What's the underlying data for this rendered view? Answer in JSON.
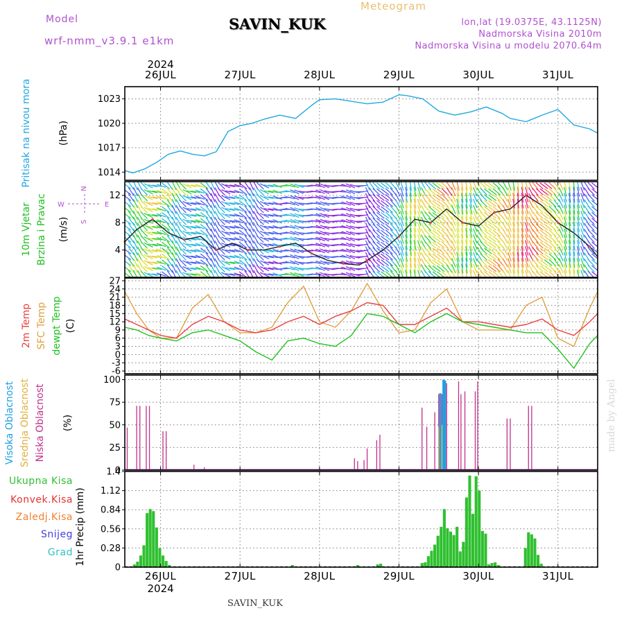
{
  "header": {
    "model_label": "Model",
    "model_name": "wrf-nmm_v3.9.1  e1km",
    "station": "SAVIN_KUK",
    "meteogram": "Meteogram",
    "lonlat": "lon,lat (19.0375E, 43.1125N)",
    "elevation": "Nadmorska Visina 2010m",
    "model_elevation": "Nadmorska Visina u modelu 2070.64m",
    "footer_station": "SAVIN_KUK",
    "credit": "made by Angel"
  },
  "colors": {
    "pressure": "#1fa8e0",
    "temp2m": "#e84040",
    "sfc": "#e0a040",
    "dewpt": "#20c020",
    "purple": "#b050d0",
    "precip": "#30c030",
    "konvek": "#e83030",
    "zaledj": "#f08030",
    "snijeg": "#4040e0",
    "grad": "#30c0c0",
    "low_cloud": "#c0308a",
    "mid_cloud": "#e0b040",
    "high_cloud": "#1fa0e0"
  },
  "chart_data": [
    {
      "type": "line",
      "panel": "pressure",
      "ylabel_lines": [
        "Pritisak na nivou mora"
      ],
      "unit": "(hPa)",
      "yticks": [
        1014,
        1017,
        1020,
        1023
      ],
      "ylim": [
        1013,
        1024.5
      ],
      "xlim": [
        -0.45,
        5.5
      ],
      "series": [
        {
          "name": "Pritisak na nivou mora",
          "x": [
            -0.45,
            -0.35,
            -0.2,
            -0.05,
            0.1,
            0.25,
            0.4,
            0.55,
            0.7,
            0.85,
            1.0,
            1.15,
            1.3,
            1.5,
            1.7,
            1.9,
            2.0,
            2.2,
            2.4,
            2.6,
            2.8,
            3.0,
            3.1,
            3.3,
            3.5,
            3.7,
            3.9,
            4.1,
            4.3,
            4.4,
            4.6,
            4.8,
            5.0,
            5.2,
            5.4,
            5.5
          ],
          "y": [
            1014.2,
            1013.9,
            1014.4,
            1015.2,
            1016.2,
            1016.6,
            1016.2,
            1016.0,
            1016.5,
            1019.0,
            1019.7,
            1020.0,
            1020.5,
            1021.0,
            1020.6,
            1022.2,
            1022.9,
            1023.0,
            1022.7,
            1022.4,
            1022.6,
            1023.5,
            1023.4,
            1023.0,
            1021.5,
            1021.0,
            1021.4,
            1022.0,
            1021.2,
            1020.6,
            1020.2,
            1021.0,
            1021.7,
            1019.8,
            1019.3,
            1018.8
          ]
        }
      ]
    },
    {
      "type": "line",
      "panel": "wind",
      "ylabel_lines": [
        "10m Vjetar",
        "Brzina i Pravac"
      ],
      "unit": "(m/s)",
      "compass_labels": [
        "N",
        "W",
        "E",
        "S"
      ],
      "yticks": [
        4,
        8,
        12
      ],
      "ylim": [
        0,
        14
      ],
      "xlim": [
        -0.45,
        5.5
      ],
      "series": [
        {
          "name": "Brzina",
          "x": [
            -0.45,
            -0.3,
            -0.1,
            0.1,
            0.3,
            0.5,
            0.7,
            0.9,
            1.1,
            1.3,
            1.5,
            1.7,
            1.9,
            2.1,
            2.3,
            2.5,
            2.6,
            2.8,
            3.0,
            3.2,
            3.4,
            3.6,
            3.8,
            4.0,
            4.2,
            4.4,
            4.6,
            4.8,
            5.0,
            5.2,
            5.4,
            5.5
          ],
          "y": [
            5.2,
            7.0,
            8.5,
            6.5,
            5.5,
            6.0,
            4.0,
            5.0,
            4.0,
            4.0,
            4.5,
            5.0,
            3.5,
            2.5,
            2.0,
            1.8,
            2.5,
            4.0,
            6.0,
            8.5,
            8.0,
            10.0,
            8.0,
            7.5,
            9.5,
            10.0,
            12.0,
            10.5,
            8.0,
            6.5,
            4.5,
            3.0
          ]
        }
      ]
    },
    {
      "type": "line",
      "panel": "temperature",
      "ylabel_lines": [
        "2m Temp",
        "SFC Temp",
        "dewpt Temp"
      ],
      "unit": "(C)",
      "yticks": [
        -6,
        -3,
        0,
        3,
        6,
        9,
        12,
        15,
        18,
        21,
        24,
        27
      ],
      "ylim": [
        -7,
        28
      ],
      "xlim": [
        -0.45,
        5.5
      ],
      "series": [
        {
          "name": "2m Temp",
          "x": [
            -0.45,
            -0.3,
            -0.15,
            0.0,
            0.2,
            0.4,
            0.6,
            0.8,
            1.0,
            1.2,
            1.4,
            1.6,
            1.8,
            2.0,
            2.2,
            2.4,
            2.6,
            2.8,
            3.0,
            3.2,
            3.4,
            3.6,
            3.8,
            4.0,
            4.2,
            4.4,
            4.6,
            4.8,
            5.0,
            5.2,
            5.4,
            5.5
          ],
          "y": [
            13,
            11,
            9,
            7,
            6,
            11,
            14,
            12,
            9,
            8,
            9,
            12,
            14,
            11,
            14,
            16,
            19,
            18,
            11,
            11,
            14,
            17,
            12,
            12,
            11,
            10,
            11,
            13,
            9,
            7,
            12,
            15
          ]
        },
        {
          "name": "SFC Temp",
          "x": [
            -0.45,
            -0.3,
            -0.15,
            0.0,
            0.2,
            0.4,
            0.6,
            0.8,
            1.0,
            1.2,
            1.4,
            1.6,
            1.8,
            2.0,
            2.2,
            2.4,
            2.6,
            2.8,
            3.0,
            3.2,
            3.4,
            3.6,
            3.8,
            4.0,
            4.2,
            4.4,
            4.6,
            4.8,
            5.0,
            5.2,
            5.4,
            5.5
          ],
          "y": [
            23,
            15,
            9,
            6,
            6,
            17,
            22,
            12,
            8,
            8,
            10,
            19,
            25,
            12,
            10,
            16,
            26,
            16,
            8,
            9,
            19,
            24,
            12,
            9,
            9,
            9,
            18,
            21,
            6,
            3,
            17,
            23
          ]
        },
        {
          "name": "dewpt Temp",
          "x": [
            -0.45,
            -0.3,
            -0.15,
            0.0,
            0.2,
            0.4,
            0.6,
            0.8,
            1.0,
            1.2,
            1.4,
            1.6,
            1.8,
            2.0,
            2.2,
            2.4,
            2.6,
            2.8,
            3.0,
            3.2,
            3.4,
            3.6,
            3.8,
            4.0,
            4.2,
            4.4,
            4.6,
            4.8,
            5.0,
            5.2,
            5.4,
            5.5
          ],
          "y": [
            10,
            9,
            7,
            6,
            5,
            8,
            9,
            7,
            5,
            1,
            -2,
            5,
            6,
            4,
            3,
            7,
            15,
            14,
            11,
            8,
            12,
            15,
            12,
            11,
            10,
            9,
            8,
            8,
            2,
            -5,
            4,
            7
          ]
        }
      ]
    },
    {
      "type": "bar",
      "panel": "cloud",
      "ylabel_lines": [
        "Visoka Oblacnost",
        "Srednja Oblacnost",
        "Niska Oblacnost"
      ],
      "unit": "(%)",
      "yticks": [
        0,
        25,
        50,
        75,
        100
      ],
      "ylim": [
        0,
        105
      ],
      "xlim": [
        -0.45,
        5.5
      ],
      "series": [
        {
          "name": "Niska Oblacnost",
          "x": [
            -0.42,
            -0.3,
            -0.26,
            -0.18,
            -0.14,
            0.03,
            0.07,
            0.42,
            0.55,
            2.44,
            2.48,
            2.56,
            2.6,
            2.72,
            2.76,
            3.29,
            3.35,
            3.45,
            3.5,
            3.54,
            3.6,
            3.75,
            3.78,
            3.83,
            3.96,
            3.99,
            4.36,
            4.4,
            4.63,
            4.67
          ],
          "values": [
            47,
            71,
            71,
            71,
            71,
            43,
            43,
            6,
            3,
            13,
            10,
            11,
            24,
            33,
            39,
            69,
            48,
            64,
            84,
            84,
            96,
            98,
            84,
            87,
            87,
            98,
            57,
            57,
            71,
            71
          ]
        },
        {
          "name": "Srednja Oblacnost",
          "x": [
            3.5,
            3.54
          ],
          "values": [
            48,
            50
          ]
        },
        {
          "name": "Visoka Oblacnost",
          "x": [
            3.52,
            3.56,
            3.58
          ],
          "values": [
            85,
            100,
            99
          ]
        }
      ]
    },
    {
      "type": "bar",
      "panel": "precip",
      "ylabel_lines": [
        "1hr Precip (mm)"
      ],
      "legend": [
        "Ukupna  Kisa",
        "Konvek.Kisa",
        "Zaledj.Kisa",
        "Snijeg",
        "Grad"
      ],
      "yticks": [
        0,
        0.28,
        0.56,
        0.84,
        1.12,
        1.4
      ],
      "ytick_labels": [
        "0",
        "0.28",
        "0.56",
        "0.84",
        "1.12",
        "1.4"
      ],
      "ylim": [
        0,
        1.4
      ],
      "xlim": [
        -0.45,
        5.5
      ],
      "series": [
        {
          "name": "Ukupna  Kisa",
          "x": [
            -0.33,
            -0.29,
            -0.25,
            -0.21,
            -0.17,
            -0.13,
            -0.09,
            -0.05,
            -0.01,
            0.03,
            0.07,
            0.11,
            1.66,
            2.48,
            2.73,
            2.77,
            3.29,
            3.33,
            3.37,
            3.41,
            3.45,
            3.49,
            3.53,
            3.57,
            3.61,
            3.65,
            3.69,
            3.73,
            3.77,
            3.81,
            3.85,
            3.89,
            3.93,
            3.97,
            4.01,
            4.05,
            4.09,
            4.13,
            4.17,
            4.21,
            4.25,
            4.59,
            4.63,
            4.67,
            4.71,
            4.75,
            4.79
          ],
          "values": [
            0.04,
            0.08,
            0.17,
            0.32,
            0.79,
            0.85,
            0.82,
            0.58,
            0.28,
            0.17,
            0.09,
            0.03,
            0.03,
            0.03,
            0.04,
            0.05,
            0.06,
            0.07,
            0.16,
            0.24,
            0.33,
            0.46,
            0.59,
            0.85,
            0.57,
            0.52,
            0.47,
            0.59,
            0.23,
            0.37,
            1.02,
            1.34,
            0.78,
            1.33,
            1.12,
            0.53,
            0.49,
            0.04,
            0.06,
            0.07,
            0.03,
            0.28,
            0.51,
            0.48,
            0.42,
            0.18,
            0.05
          ]
        },
        {
          "name": "Konvek.Kisa",
          "x": [],
          "values": []
        },
        {
          "name": "Zaledj.Kisa",
          "x": [],
          "values": []
        },
        {
          "name": "Snijeg",
          "x": [],
          "values": []
        },
        {
          "name": "Grad",
          "x": [],
          "values": []
        }
      ]
    }
  ],
  "xaxis": {
    "days": [
      "26JUL",
      "27JUL",
      "28JUL",
      "29JUL",
      "30JUL",
      "31JUL"
    ],
    "year": "2024"
  }
}
